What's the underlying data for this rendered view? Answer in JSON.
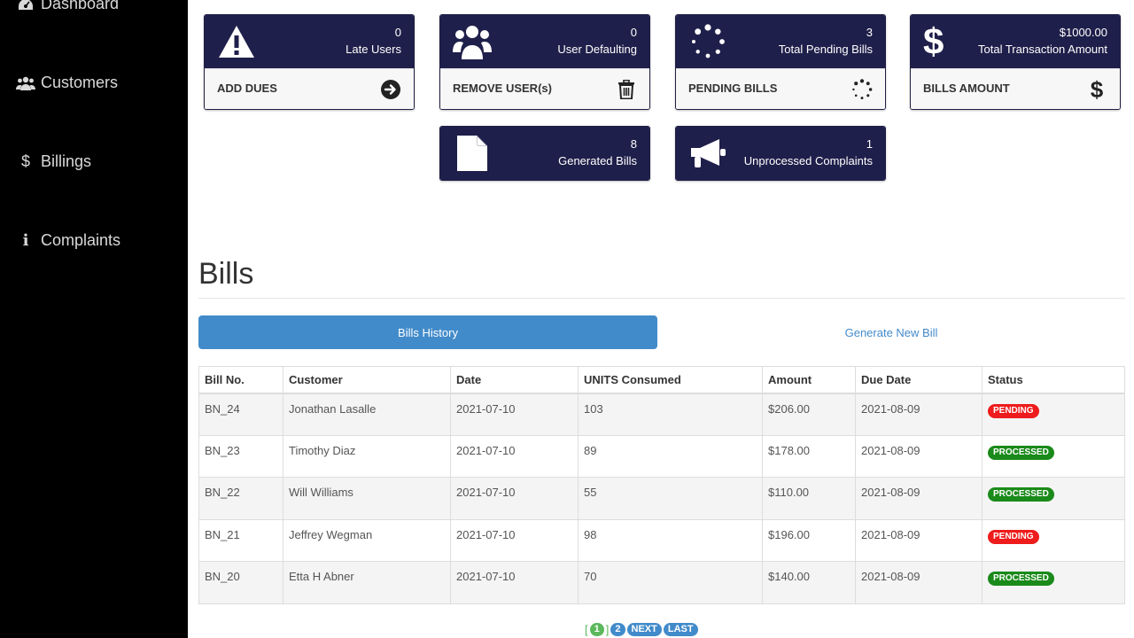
{
  "colors": {
    "sidebar_bg": "#000000",
    "card_header": "#1f1f4b",
    "primary": "#428bca",
    "pending": "#ee1c1c",
    "processed": "#1a8a1a",
    "page_current": "#5cb85c"
  },
  "sidebar": {
    "items": [
      {
        "label": "Dashboard",
        "icon": "dashboard-icon"
      },
      {
        "label": "Customers",
        "icon": "users-icon"
      },
      {
        "label": "Billings",
        "icon": "dollar-icon"
      },
      {
        "label": "Complaints",
        "icon": "info-icon"
      }
    ]
  },
  "cards": [
    {
      "count": "0",
      "label": "Late Users",
      "action": "ADD DUES",
      "icon": "warning-icon",
      "action_icon": "arrow-right-circle-icon"
    },
    {
      "count": "0",
      "label": "User Defaulting",
      "action": "REMOVE USER(s)",
      "icon": "users-group-icon",
      "action_icon": "trash-icon"
    },
    {
      "count": "3",
      "label": "Total Pending Bills",
      "action": "PENDING BILLS",
      "icon": "spinner-icon",
      "action_icon": "spinner-icon"
    },
    {
      "count": "$1000.00",
      "label": "Total Transaction Amount",
      "action": "BILLS AMOUNT",
      "icon": "dollar-icon",
      "action_icon": "dollar-icon"
    },
    {
      "count": "8",
      "label": "Generated Bills",
      "icon": "file-icon"
    },
    {
      "count": "1",
      "label": "Unprocessed Complaints",
      "icon": "megaphone-icon"
    }
  ],
  "bills": {
    "title": "Bills",
    "tabs": {
      "active": "Bills History",
      "other": "Generate New Bill"
    },
    "columns": [
      "Bill No.",
      "Customer",
      "Date",
      "UNITS Consumed",
      "Amount",
      "Due Date",
      "Status"
    ],
    "rows": [
      [
        "BN_24",
        "Jonathan Lasalle",
        "2021-07-10",
        "103",
        "$206.00",
        "2021-08-09",
        "PENDING"
      ],
      [
        "BN_23",
        "Timothy Diaz",
        "2021-07-10",
        "89",
        "$178.00",
        "2021-08-09",
        "PROCESSED"
      ],
      [
        "BN_22",
        "Will Williams",
        "2021-07-10",
        "55",
        "$110.00",
        "2021-08-09",
        "PROCESSED"
      ],
      [
        "BN_21",
        "Jeffrey Wegman",
        "2021-07-10",
        "98",
        "$196.00",
        "2021-08-09",
        "PENDING"
      ],
      [
        "BN_20",
        "Etta H Abner",
        "2021-07-10",
        "70",
        "$140.00",
        "2021-08-09",
        "PROCESSED"
      ]
    ]
  },
  "pagination": {
    "brackets": [
      "[",
      "]"
    ],
    "current": "1",
    "pages": [
      "2"
    ],
    "next": "NEXT",
    "last": "LAST"
  }
}
